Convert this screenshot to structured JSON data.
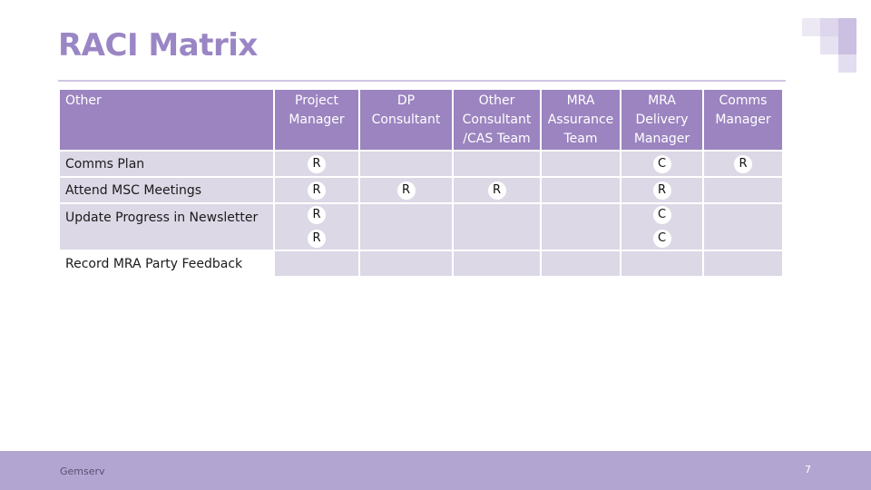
{
  "slide": {
    "title": "RACI Matrix",
    "footer_brand": "Gemserv",
    "page_number": "7"
  },
  "colors": {
    "title": "#9a86c4",
    "header_fill": "#9b84c0",
    "cell_fill": "#dcd8e6",
    "footer_fill": "#b3a5d1"
  },
  "matrix": {
    "corner_label": "Other",
    "columns": [
      "Project\nManager",
      "DP\nConsultant",
      "Other\nConsultant\n/CAS Team",
      "MRA\nAssurance\nTeam",
      "MRA\nDelivery\nManager",
      "Comms\nManager"
    ],
    "rows": [
      {
        "task": "Comms Plan",
        "cells": [
          "R",
          "",
          "",
          "",
          "C",
          "R"
        ]
      },
      {
        "task": "Attend MSC Meetings",
        "cells": [
          "R",
          "R",
          "R",
          "",
          "R",
          ""
        ]
      },
      {
        "task": "Update Progress in Newsletter",
        "cells": [
          "R|R",
          "",
          "",
          "",
          "C|C",
          ""
        ]
      },
      {
        "task": "Record MRA Party Feedback",
        "cells": [
          "",
          "",
          "",
          "",
          "",
          ""
        ]
      }
    ]
  }
}
